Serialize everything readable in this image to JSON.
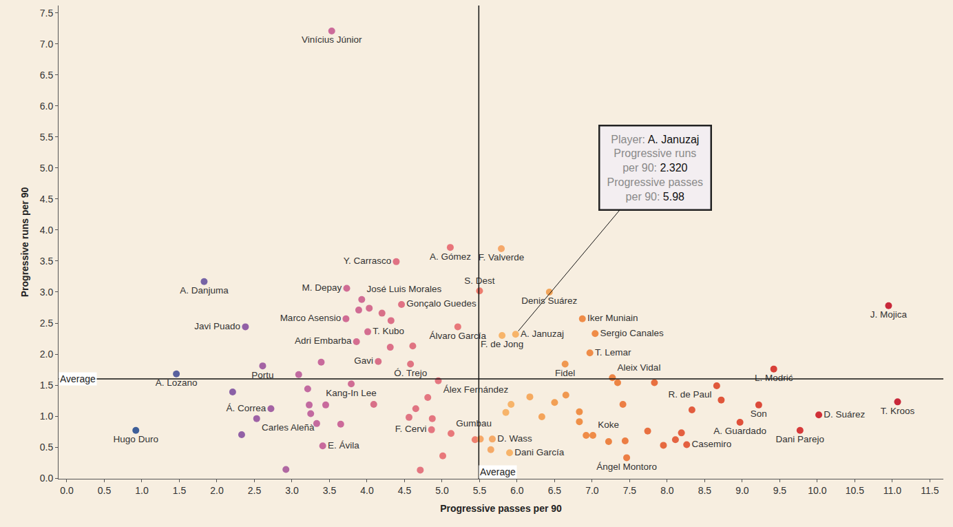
{
  "chart_data": {
    "type": "scatter",
    "xlabel": "Progressive passes per 90",
    "ylabel": "Progressive runs per 90",
    "xlim": [
      -0.11,
      11.68
    ],
    "ylim": [
      -0.01,
      7.62
    ],
    "xticks": [
      {
        "value": 0,
        "label": "0.0"
      },
      0.5,
      {
        "value": 1,
        "label": "1.0"
      },
      1.5,
      {
        "value": 2,
        "label": "2.0"
      },
      2.5,
      {
        "value": 3,
        "label": "3.0"
      },
      3.5,
      {
        "value": 4,
        "label": "4.0"
      },
      4.5,
      {
        "value": 5,
        "label": "5.0"
      },
      5.5,
      {
        "value": 6,
        "label": "6.0"
      },
      6.5,
      {
        "value": 7,
        "label": "7.0"
      },
      7.5,
      {
        "value": 8,
        "label": "8.0"
      },
      8.5,
      {
        "value": 9,
        "label": "9.0"
      },
      9.5,
      {
        "value": 10,
        "label": "10.0"
      },
      10.5,
      {
        "value": 11,
        "label": "11.0"
      },
      11.5
    ],
    "yticks": [
      {
        "value": 0,
        "label": "0.0"
      },
      0.5,
      {
        "value": 1,
        "label": "1.0"
      },
      1.5,
      {
        "value": 2,
        "label": "2.0"
      },
      2.5,
      {
        "value": 3,
        "label": "3.0"
      },
      3.5,
      {
        "value": 4,
        "label": "4.0"
      },
      4.5,
      {
        "value": 5,
        "label": "5.0"
      },
      5.5,
      {
        "value": 6,
        "label": "6.0"
      },
      6.5,
      {
        "value": 7,
        "label": "7.0"
      },
      7.5
    ],
    "grid": false,
    "labels": [
      "Vinícius Júnior",
      "A. Gómez",
      "F. Valverde",
      "Y. Carrasco",
      "S. Dest",
      "Denis Suárez",
      "A. Danjuma",
      "M. Depay",
      "José Luis Morales",
      "Gonçalo Guedes",
      "Javi Puado",
      "Marco Asensio",
      "T. Kubo",
      "Adri Embarba",
      "Álvaro García",
      "A. Januzaj",
      "F. de Jong",
      "Iker Muniain",
      "Sergio Canales",
      "T. Lemar",
      "J. Mojica",
      "Gavi",
      "Ó. Trejo",
      "Portu",
      "A. Lozano",
      "Fidel",
      "Aleix Vidal",
      "L. Modrić",
      "Álex Fernández",
      "Kang-In Lee",
      "R. de Paul",
      "Á. Correa",
      "Son",
      "T. Kroos",
      "D. Suárez",
      "Hugo Duro",
      "Carles Aleñà",
      "F. Cervi",
      "Gumbau",
      "Koke",
      "A. Guardado",
      "Dani Parejo",
      "Casemiro",
      "D. Wass",
      "E. Ávila",
      "Dani García",
      "Ángel Montoro",
      null,
      null,
      null,
      null,
      null,
      null,
      null,
      null,
      null,
      null,
      null,
      null,
      null,
      null,
      null,
      null,
      null,
      null,
      null,
      null,
      null,
      null,
      null,
      null,
      null,
      null,
      null,
      null,
      null,
      null,
      null,
      null,
      null,
      null,
      null,
      null,
      null,
      null,
      null,
      null,
      null,
      null,
      null,
      null,
      null
    ],
    "x": [
      3.53,
      5.11,
      5.79,
      4.39,
      5.5,
      6.43,
      1.83,
      3.73,
      3.93,
      4.46,
      2.38,
      3.72,
      4.01,
      3.86,
      5.21,
      5.98,
      5.8,
      6.87,
      7.04,
      6.97,
      10.95,
      4.15,
      4.58,
      2.61,
      1.46,
      6.64,
      7.27,
      9.42,
      4.95,
      3.79,
      8.66,
      2.72,
      9.22,
      11.07,
      10.02,
      0.92,
      2.53,
      4.86,
      5.12,
      7.01,
      8.97,
      9.77,
      8.26,
      5.67,
      3.41,
      5.9,
      7.46,
      4.03,
      3.89,
      4.2,
      4.32,
      4.31,
      4.61,
      3.39,
      3.09,
      3.21,
      3.23,
      3.25,
      3.33,
      3.45,
      3.65,
      4.09,
      4.81,
      4.65,
      4.56,
      4.87,
      5.01,
      4.71,
      2.92,
      2.21,
      2.33,
      5.44,
      5.51,
      5.65,
      5.92,
      6.17,
      5.85,
      6.33,
      6.5,
      6.65,
      6.83,
      6.83,
      6.92,
      7.22,
      7.44,
      7.41,
      7.34,
      7.83,
      7.74,
      8.11,
      8.19,
      8.33,
      8.72,
      7.95
    ],
    "values": [
      7.21,
      3.72,
      3.7,
      3.49,
      3.02,
      3.0,
      3.17,
      3.06,
      2.88,
      2.8,
      2.44,
      2.57,
      2.36,
      2.2,
      2.44,
      2.32,
      2.3,
      2.57,
      2.33,
      2.02,
      2.78,
      1.88,
      1.84,
      1.81,
      1.68,
      1.84,
      1.62,
      1.76,
      1.57,
      1.52,
      1.49,
      1.12,
      1.18,
      1.23,
      1.02,
      0.77,
      0.96,
      0.78,
      0.72,
      0.69,
      0.9,
      0.77,
      0.54,
      0.63,
      0.52,
      0.41,
      0.33,
      2.74,
      2.71,
      2.66,
      2.54,
      2.11,
      2.13,
      1.87,
      1.67,
      1.44,
      1.18,
      1.04,
      0.88,
      1.18,
      0.87,
      1.19,
      1.3,
      1.12,
      0.98,
      0.96,
      0.36,
      0.13,
      0.14,
      1.39,
      0.7,
      0.62,
      0.63,
      0.46,
      1.19,
      1.31,
      1.06,
      0.99,
      1.22,
      1.34,
      1.07,
      0.91,
      0.69,
      0.59,
      0.6,
      1.19,
      1.54,
      1.54,
      0.76,
      0.62,
      0.73,
      1.1,
      1.26,
      0.53
    ],
    "colors": [
      "#cc6a9a",
      "#e8747a",
      "#f5a86a",
      "#e07284",
      "#ec7c6e",
      "#f2a55a",
      "#7664a6",
      "#d06c94",
      "#d06c94",
      "#e07284",
      "#9260a6",
      "#d06c94",
      "#d46e90",
      "#d46e90",
      "#e8787a",
      "#f7b46a",
      "#f7b46a",
      "#ef8c48",
      "#ef8c48",
      "#ef8c48",
      "#c8283a",
      "#d87088",
      "#e07482",
      "#a463a4",
      "#58609e",
      "#f09850",
      "#ec8444",
      "#d84038",
      "#e47680",
      "#d06c94",
      "#e0583a",
      "#a463a4",
      "#dc4a3a",
      "#c8283a",
      "#d03038",
      "#3e5e98",
      "#9e62a6",
      "#e47680",
      "#e8787a",
      "#ef8c48",
      "#e0503a",
      "#d63a3a",
      "#e46040",
      "#f5aa68",
      "#c86a9c",
      "#f7b46a",
      "#ec7e44",
      "#d46e90",
      "#d06c94",
      "#d87088",
      "#dc7088",
      "#dc7088",
      "#e07482",
      "#c86a9c",
      "#c06aa0",
      "#c26aa0",
      "#c26aa0",
      "#c26aa0",
      "#c46a9e",
      "#c86a9c",
      "#cc6a9a",
      "#d87088",
      "#e47680",
      "#e07482",
      "#e07482",
      "#e47680",
      "#e8787a",
      "#e47680",
      "#b068a2",
      "#8a60a6",
      "#9260a6",
      "#ee8070",
      "#f5a868",
      "#f5aa68",
      "#f7b46a",
      "#f5aa60",
      "#f7b46a",
      "#f4a45a",
      "#f2a055",
      "#f09850",
      "#ef9048",
      "#ef9048",
      "#ef8c48",
      "#ec8444",
      "#ec7e44",
      "#ec7e44",
      "#ec8444",
      "#e87040",
      "#e87040",
      "#e46442",
      "#e46040",
      "#e25c3e",
      "#e0563a",
      "#e66a40"
    ],
    "averages": {
      "x": 5.49,
      "y": 1.6,
      "label": "Average"
    },
    "tooltip": {
      "player_label": "Player:",
      "player": "A. Januzaj",
      "y_label": [
        "Progressive runs",
        "per 90:"
      ],
      "y_value": 2.32,
      "y_value_label": "2.320",
      "x_label": [
        "Progressive passes",
        "per 90:"
      ],
      "x_value": 5.98
    }
  }
}
